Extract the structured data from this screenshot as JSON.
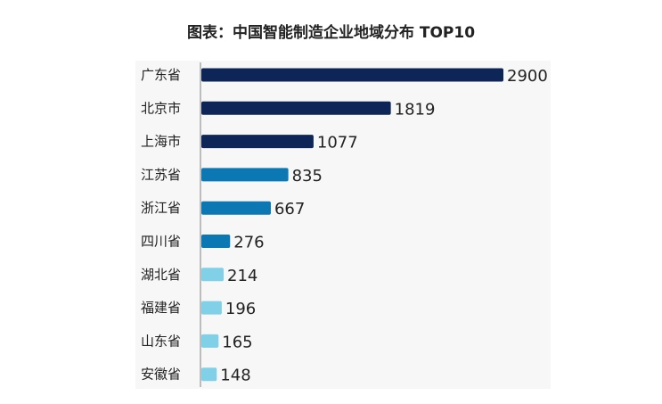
{
  "chart_data": {
    "type": "bar",
    "orientation": "horizontal",
    "title": "图表：中国智能制造企业地域分布 TOP10",
    "categories": [
      "广东省",
      "北京市",
      "上海市",
      "江苏省",
      "浙江省",
      "四川省",
      "湖北省",
      "福建省",
      "山东省",
      "安徽省"
    ],
    "values": [
      2900,
      1819,
      1077,
      835,
      667,
      276,
      214,
      196,
      165,
      148
    ],
    "bar_colors": [
      "#0d2657",
      "#0d2657",
      "#0d2657",
      "#0b77b3",
      "#0b77b3",
      "#0b77b3",
      "#80d0e8",
      "#80d0e8",
      "#80d0e8",
      "#80d0e8"
    ],
    "xlim": [
      0,
      2900
    ],
    "grid": false,
    "data_labels": true
  }
}
